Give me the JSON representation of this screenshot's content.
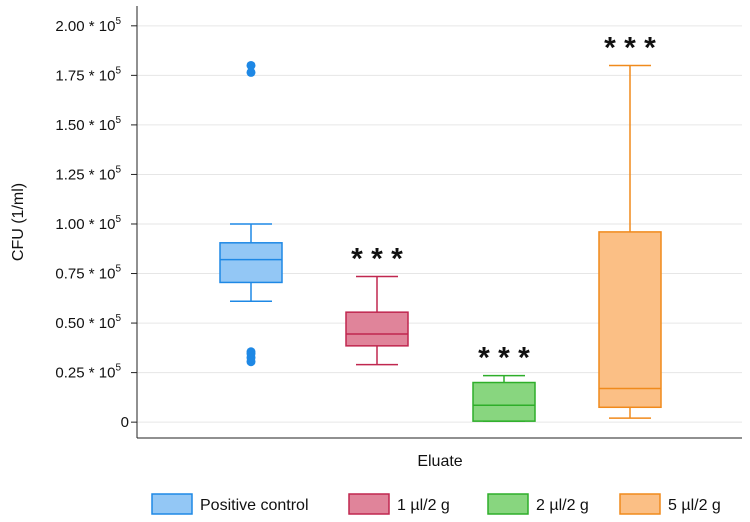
{
  "chart_data": {
    "type": "boxplot",
    "title": "",
    "xlabel": "Eluate",
    "ylabel": "CFU (1/ml)",
    "ylim": [
      -8000,
      210000
    ],
    "y_ticks": [
      {
        "value": 0,
        "label": "0"
      },
      {
        "value": 25000,
        "label": "0.25 * 10",
        "exp": "5"
      },
      {
        "value": 50000,
        "label": "0.50 * 10",
        "exp": "5"
      },
      {
        "value": 75000,
        "label": "0.75 * 10",
        "exp": "5"
      },
      {
        "value": 100000,
        "label": "1.00 * 10",
        "exp": "5"
      },
      {
        "value": 125000,
        "label": "1.25 * 10",
        "exp": "5"
      },
      {
        "value": 150000,
        "label": "1.50 * 10",
        "exp": "5"
      },
      {
        "value": 175000,
        "label": "1.75 * 10",
        "exp": "5"
      },
      {
        "value": 200000,
        "label": "2.00 * 10",
        "exp": "5"
      }
    ],
    "grid": true,
    "legend_position": "bottom",
    "series": [
      {
        "name": "Positive control",
        "fill": "#93c7f5",
        "stroke": "#1e88e5",
        "whisker_low": 61000,
        "q1": 70500,
        "median": 82000,
        "q3": 90500,
        "whisker_high": 100000,
        "outliers": [
          30500,
          32500,
          34500,
          35500,
          176500,
          180000
        ],
        "significance": ""
      },
      {
        "name": "1 µl/2 g",
        "fill": "#e0849a",
        "stroke": "#c0274f",
        "whisker_low": 29000,
        "q1": 38500,
        "median": 44500,
        "q3": 55500,
        "whisker_high": 73500,
        "outliers": [],
        "significance": "* * *"
      },
      {
        "name": "2 µl/2 g",
        "fill": "#88d67f",
        "stroke": "#2eae2a",
        "whisker_low": 500,
        "q1": 500,
        "median": 8500,
        "q3": 20000,
        "whisker_high": 23500,
        "outliers": [],
        "significance": "* * *"
      },
      {
        "name": "5 µl/2 g",
        "fill": "#fbbf85",
        "stroke": "#f08a1c",
        "whisker_low": 2000,
        "q1": 7500,
        "median": 17000,
        "q3": 96000,
        "whisker_high": 180000,
        "outliers": [],
        "significance": "* * *"
      }
    ]
  }
}
